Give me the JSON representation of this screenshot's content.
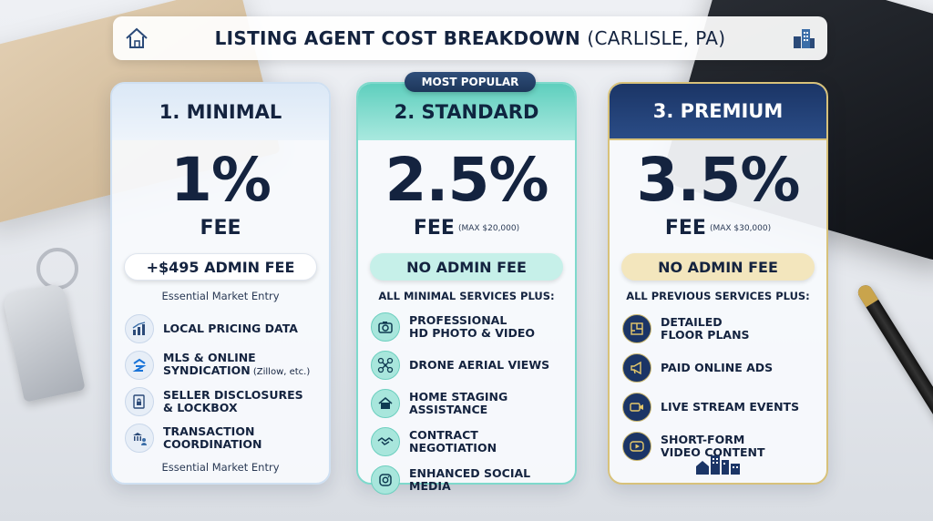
{
  "title": {
    "main": "LISTING AGENT COST BREAKDOWN",
    "location": "(CARLISLE, PA)",
    "left_icon": "house-icon",
    "right_icon": "buildings-icon"
  },
  "badge": "MOST POPULAR",
  "plans": [
    {
      "name": "1. MINIMAL",
      "rate": "1%",
      "fee_label": "FEE",
      "fee_max": "",
      "admin": "+$495 ADMIN FEE",
      "subhead": "Essential Market Entry",
      "features": [
        {
          "icon": "chart-icon",
          "text": "LOCAL PRICING DATA",
          "note": ""
        },
        {
          "icon": "zillow-icon",
          "text": "MLS & ONLINE\nSYNDICATION",
          "note": " (Zillow, etc.)"
        },
        {
          "icon": "lock-document-icon",
          "text": "SELLER DISCLOSURES\n& LOCKBOX",
          "note": ""
        },
        {
          "icon": "bank-people-icon",
          "text": "TRANSACTION\nCOORDINATION",
          "note": ""
        }
      ],
      "footer": "Essential Market Entry"
    },
    {
      "name": "2. STANDARD",
      "rate": "2.5%",
      "fee_label": "FEE",
      "fee_max": "(MAX $20,000)",
      "admin": "NO ADMIN FEE",
      "subhead": "ALL MINIMAL SERVICES PLUS:",
      "features": [
        {
          "icon": "camera-icon",
          "text": "PROFESSIONAL\nHD PHOTO & VIDEO",
          "note": ""
        },
        {
          "icon": "drone-icon",
          "text": "DRONE AERIAL VIEWS",
          "note": ""
        },
        {
          "icon": "home-icon",
          "text": "HOME STAGING\nASSISTANCE",
          "note": ""
        },
        {
          "icon": "handshake-icon",
          "text": "CONTRACT NEGOTIATION",
          "note": ""
        },
        {
          "icon": "instagram-icon",
          "text": "ENHANCED SOCIAL MEDIA",
          "note": ""
        }
      ],
      "footer": ""
    },
    {
      "name": "3. PREMIUM",
      "rate": "3.5%",
      "fee_label": "FEE",
      "fee_max": "(MAX $30,000)",
      "admin": "NO ADMIN FEE",
      "subhead": "ALL PREVIOUS SERVICES PLUS:",
      "features": [
        {
          "icon": "floor-plan-icon",
          "text": "DETAILED\nFLOOR PLANS",
          "note": ""
        },
        {
          "icon": "megaphone-icon",
          "text": "PAID ONLINE ADS",
          "note": ""
        },
        {
          "icon": "video-camera-icon",
          "text": "LIVE STREAM EVENTS",
          "note": ""
        },
        {
          "icon": "play-icon",
          "text": "SHORT-FORM\nVIDEO CONTENT",
          "note": ""
        }
      ],
      "footer": ""
    }
  ],
  "colors": {
    "navy": "#14233f",
    "teal": "#5fcfbe",
    "gold": "#d8c27a"
  }
}
